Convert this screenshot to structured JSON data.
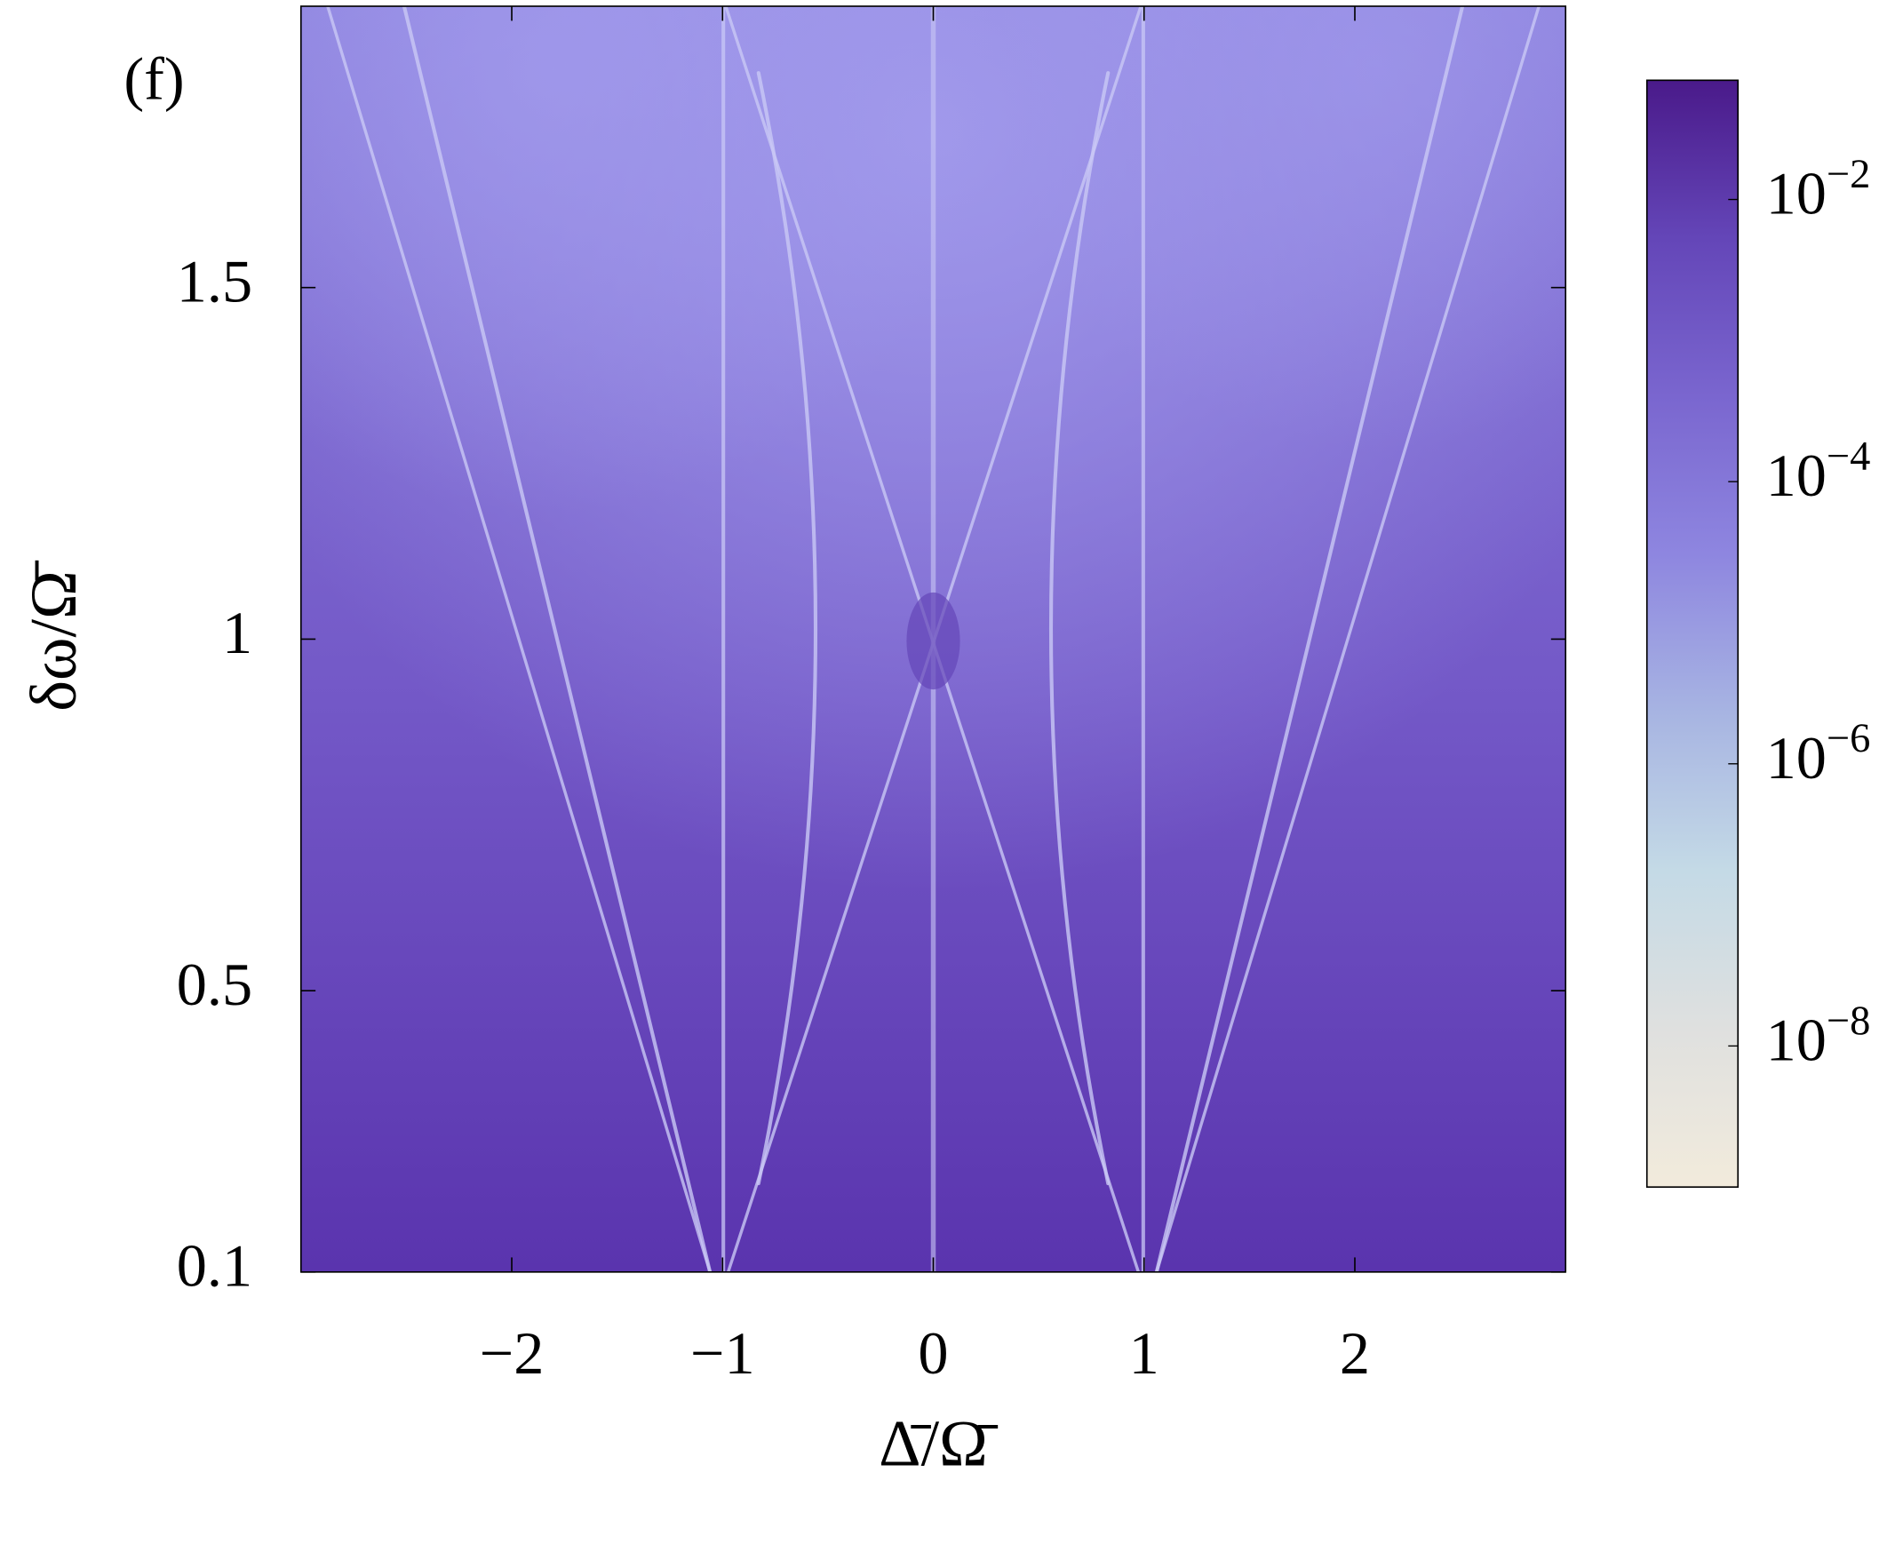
{
  "chart_data": {
    "type": "heatmap",
    "panel_label": "(f)",
    "xlabel": "Δ̄/Ω̄",
    "ylabel": "δω/Ω̄",
    "xlim": [
      -3,
      3
    ],
    "ylim": [
      0.1,
      1.9
    ],
    "xticks": [
      {
        "value": -2,
        "label": "−2"
      },
      {
        "value": -1,
        "label": "−1"
      },
      0,
      1,
      2
    ],
    "yticks": [
      0.1,
      0.5,
      1,
      1.5
    ],
    "colorbar": {
      "log_scale": true,
      "clim": [
        1e-09,
        0.07
      ],
      "ticks": [
        {
          "value": 0.01,
          "base": "10",
          "exponent": "−2"
        },
        {
          "value": 0.0001,
          "base": "10",
          "exponent": "−4"
        },
        {
          "value": 1e-06,
          "base": "10",
          "exponent": "−6"
        },
        {
          "value": 1e-08,
          "base": "10",
          "exponent": "−8"
        }
      ],
      "colormap": [
        "#f2ebdc",
        "#dfe0df",
        "#c4dae6",
        "#a7b4e2",
        "#8e86e0",
        "#7a66cf",
        "#6446b8",
        "#4a1a8a"
      ]
    }
  }
}
